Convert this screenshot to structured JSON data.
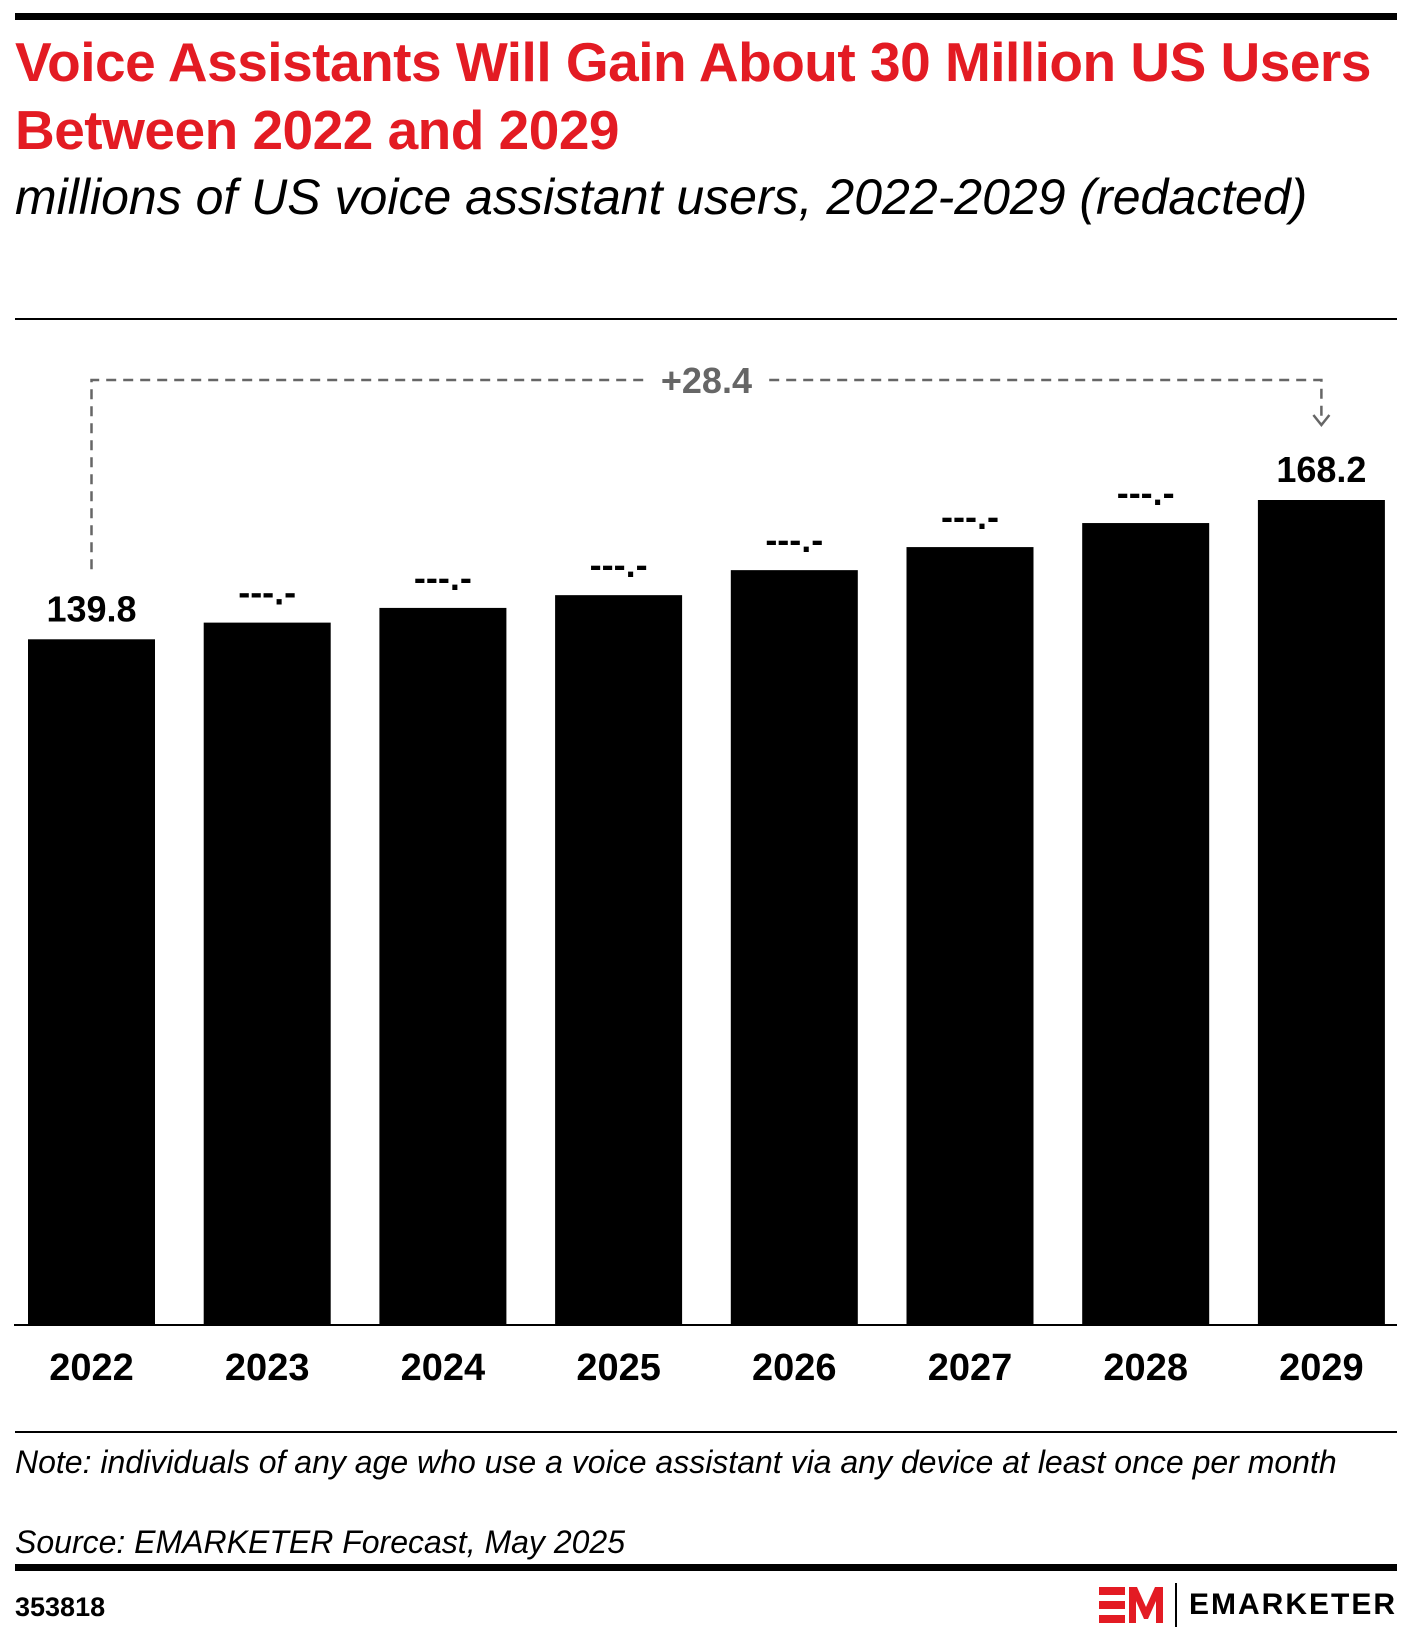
{
  "title": "Voice Assistants Will Gain About 30 Million US Users Between 2022 and 2029",
  "subtitle": "millions of US voice assistant users, 2022-2029 (redacted)",
  "note": "Note: individuals of any age who use a voice assistant via any device at least once per month",
  "source": "Source: EMARKETER Forecast, May 2025",
  "chart_id": "353818",
  "logo_text": "EMARKETER",
  "colors": {
    "title": "#e31b23",
    "bars": "#000000",
    "annotation": "#666666",
    "logo": "#e31b23"
  },
  "chart_data": {
    "type": "bar",
    "categories": [
      "2022",
      "2023",
      "2024",
      "2025",
      "2026",
      "2027",
      "2028",
      "2029"
    ],
    "values": [
      139.8,
      143.2,
      146.2,
      148.8,
      153.9,
      158.6,
      163.5,
      168.2
    ],
    "data_labels": [
      "139.8",
      "---.-",
      "---.-",
      "---.-",
      "---.-",
      "---.-",
      "---.-",
      "168.2"
    ],
    "annotation": {
      "text": "+28.4",
      "from": "2022",
      "to": "2029"
    },
    "ylim": [
      0,
      168.2
    ],
    "grid": false,
    "legend": "none"
  }
}
